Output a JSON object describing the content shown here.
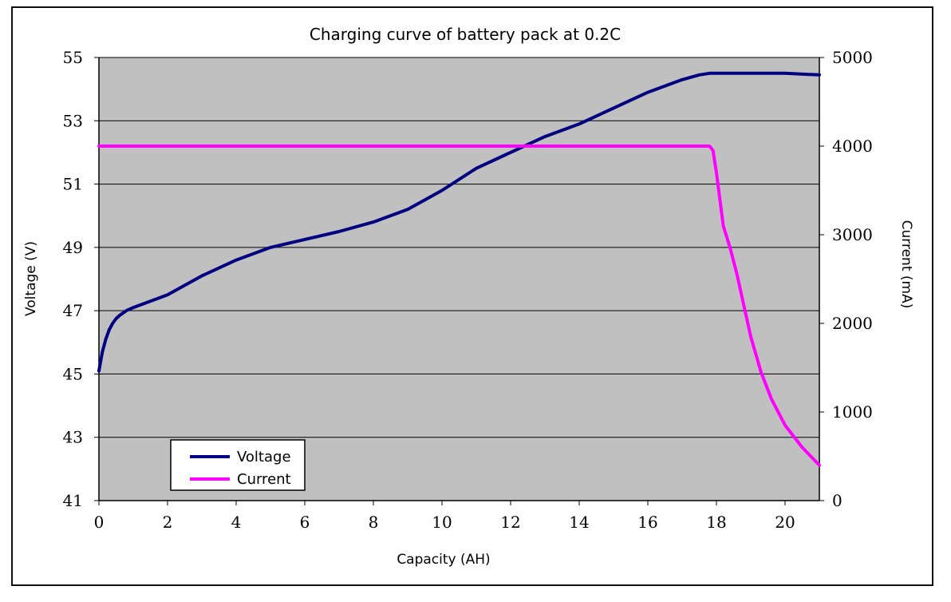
{
  "chart_data": {
    "type": "line",
    "title": "Charging curve of battery pack at 0.2C",
    "xlabel": "Capacity (AH)",
    "ylabel": "Voltage (V)",
    "y2label": "Current (mA)",
    "xlim": [
      0,
      21
    ],
    "ylim": [
      41,
      55
    ],
    "y2lim": [
      0,
      5000
    ],
    "xticks": [
      "0",
      "2",
      "4",
      "6",
      "8",
      "10",
      "12",
      "14",
      "16",
      "18",
      "20"
    ],
    "yticks": [
      "41",
      "43",
      "45",
      "47",
      "49",
      "51",
      "53",
      "55"
    ],
    "y2ticks": [
      "0",
      "1000",
      "2000",
      "3000",
      "4000",
      "5000"
    ],
    "grid": "horizontal",
    "legend_position": "bottom-left",
    "plot_background": "#c0c0c0",
    "series": [
      {
        "name": "Voltage",
        "axis": "left",
        "color": "#000080",
        "x": [
          0,
          0.1,
          0.2,
          0.3,
          0.4,
          0.5,
          0.6,
          0.8,
          1.0,
          1.5,
          2.0,
          2.5,
          3.0,
          4.0,
          5.0,
          6.0,
          7.0,
          8.0,
          9.0,
          10.0,
          11.0,
          12.0,
          13.0,
          14.0,
          15.0,
          16.0,
          17.0,
          17.5,
          17.8,
          18.5,
          19.0,
          20.0,
          21.0
        ],
        "values": [
          45.1,
          45.7,
          46.1,
          46.4,
          46.6,
          46.75,
          46.85,
          47.0,
          47.1,
          47.3,
          47.5,
          47.8,
          48.1,
          48.6,
          49.0,
          49.25,
          49.5,
          49.8,
          50.2,
          50.8,
          51.5,
          52.0,
          52.5,
          52.9,
          53.4,
          53.9,
          54.3,
          54.45,
          54.5,
          54.5,
          54.5,
          54.5,
          54.45
        ]
      },
      {
        "name": "Current",
        "axis": "right",
        "color": "#ff00ff",
        "x": [
          0,
          17.8,
          17.9,
          18.0,
          18.1,
          18.2,
          18.4,
          18.6,
          18.8,
          19.0,
          19.3,
          19.6,
          20.0,
          20.5,
          21.0
        ],
        "values": [
          4000,
          4000,
          3950,
          3700,
          3400,
          3100,
          2850,
          2550,
          2200,
          1850,
          1450,
          1150,
          850,
          600,
          400
        ]
      }
    ]
  }
}
